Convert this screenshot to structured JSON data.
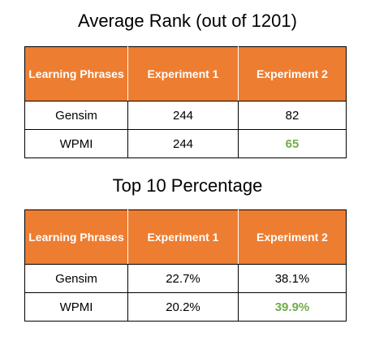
{
  "colors": {
    "header_background": "#ED7D31",
    "header_text": "#FFFFFF",
    "highlight_text": "#70AD47",
    "border": "#000000"
  },
  "chart_data": [
    {
      "type": "table",
      "title": "Average Rank (out of 1201)",
      "columns": [
        "Learning Phrases",
        "Experiment 1",
        "Experiment 2"
      ],
      "rows": [
        {
          "label": "Gensim",
          "values": [
            "244",
            "82"
          ]
        },
        {
          "label": "WPMI",
          "values": [
            "244",
            "65"
          ]
        }
      ],
      "highlighted_cells": [
        {
          "row": "WPMI",
          "column": "Experiment 2",
          "color": "#70AD47"
        }
      ]
    },
    {
      "type": "table",
      "title": "Top 10 Percentage",
      "columns": [
        "Learning Phrases",
        "Experiment 1",
        "Experiment 2"
      ],
      "rows": [
        {
          "label": "Gensim",
          "values": [
            "22.7%",
            "38.1%"
          ]
        },
        {
          "label": "WPMI",
          "values": [
            "20.2%",
            "39.9%"
          ]
        }
      ],
      "highlighted_cells": [
        {
          "row": "WPMI",
          "column": "Experiment 2",
          "color": "#70AD47"
        }
      ]
    }
  ]
}
